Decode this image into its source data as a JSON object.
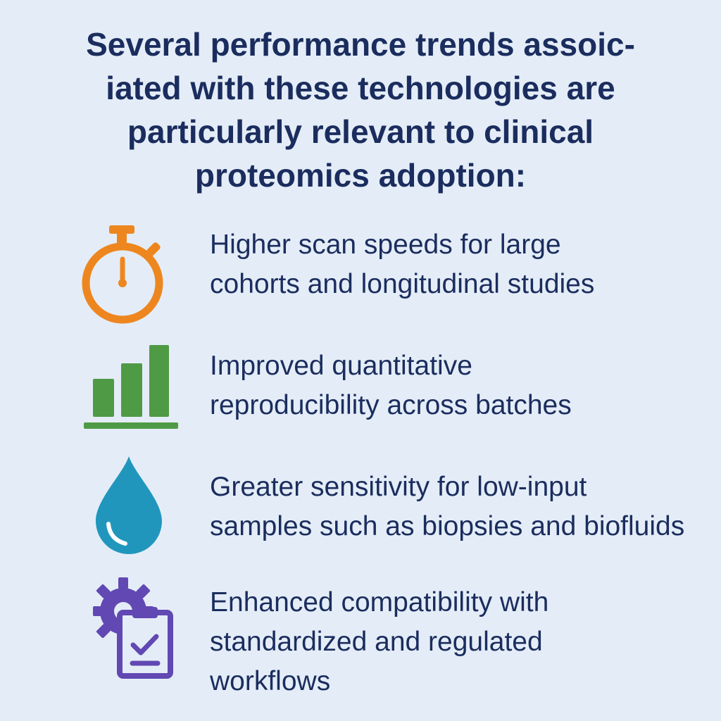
{
  "title": {
    "lines": [
      "Several performance trends assoic-",
      "iated with these technologies are",
      "particularly relevant to clinical",
      "proteomics adoption:"
    ]
  },
  "colors": {
    "background": "#e4edf7",
    "text": "#1b2d5e",
    "stopwatch": "#ee861f",
    "bars": "#4f9a45",
    "drop": "#2196bd",
    "workflow": "#6148b3"
  },
  "items": [
    {
      "icon": "stopwatch-icon",
      "lines": [
        "Higher scan speeds for large",
        "cohorts and longitudinal studies"
      ]
    },
    {
      "icon": "bar-chart-icon",
      "lines": [
        "Improved quantitative",
        "reproducibility across batches"
      ]
    },
    {
      "icon": "water-drop-icon",
      "lines": [
        "Greater sensitivity for low-input",
        "samples such as biopsies and biofluids"
      ]
    },
    {
      "icon": "gear-clipboard-icon",
      "lines": [
        "Enhanced compatibility with",
        "standardized and regulated",
        "workflows"
      ]
    }
  ]
}
